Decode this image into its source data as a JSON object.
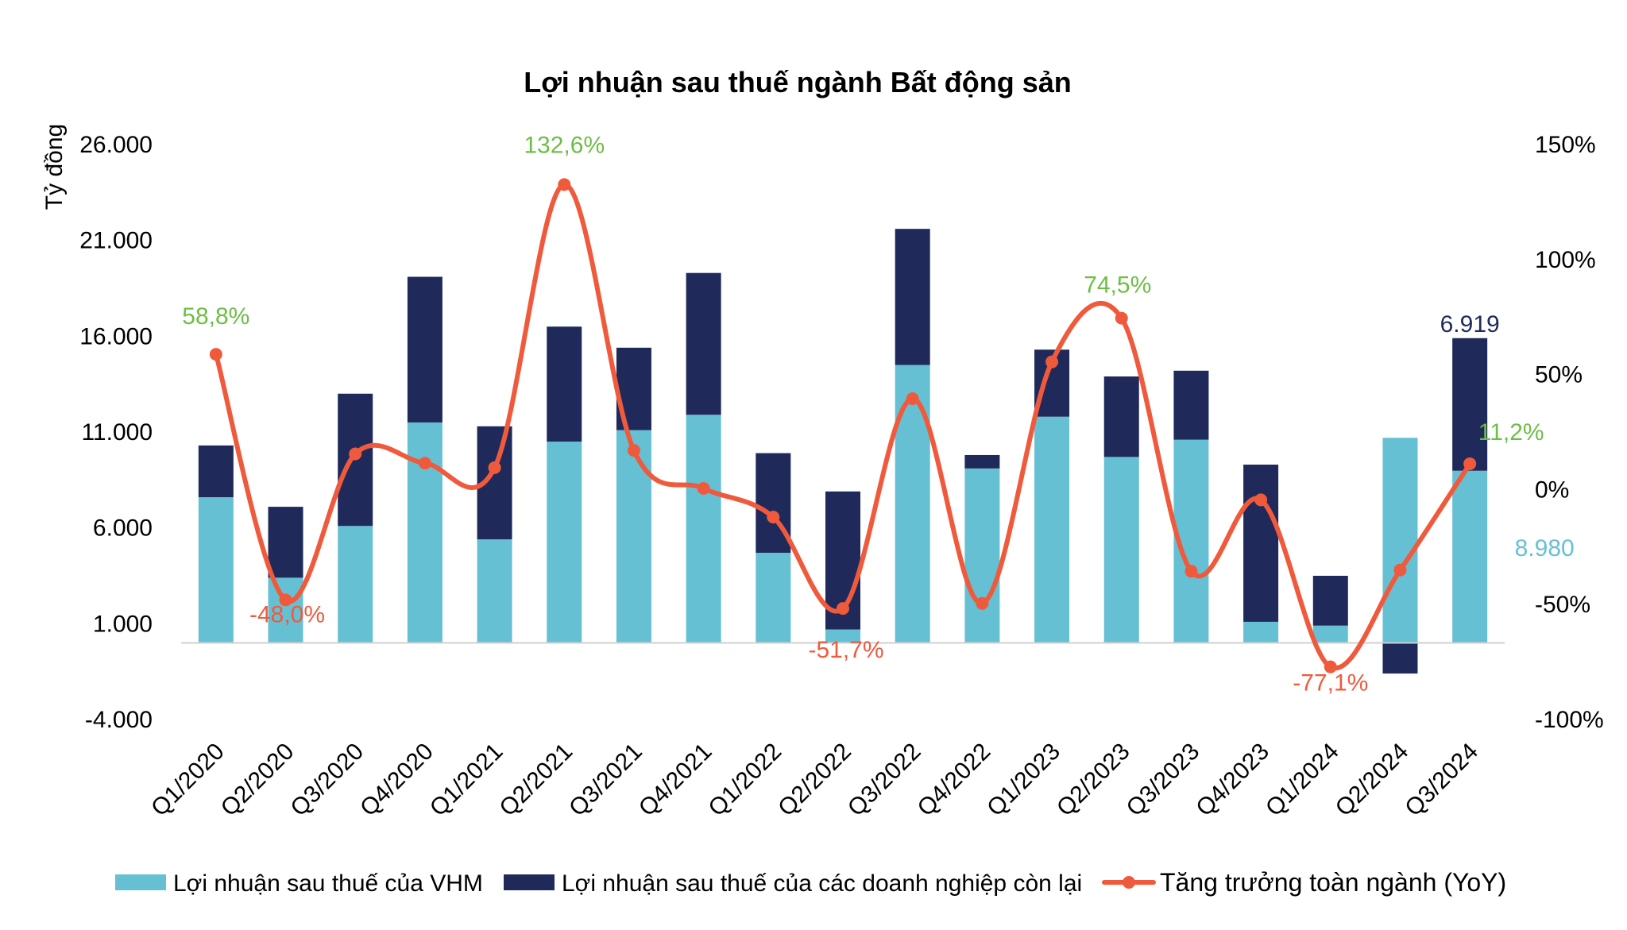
{
  "chart_data": {
    "type": "bar+line",
    "title": "Lợi nhuận sau thuế ngành Bất động sản",
    "ylabel": "Tỷ đồng",
    "ylim": [
      -4000,
      26000
    ],
    "y_ticks": [
      "26.000",
      "21.000",
      "16.000",
      "11.000",
      "6.000",
      "1.000",
      "-4.000"
    ],
    "y_tick_values": [
      26000,
      21000,
      16000,
      11000,
      6000,
      1000,
      -4000
    ],
    "y2lim": [
      -100,
      150
    ],
    "y2_ticks": [
      "150%",
      "100%",
      "50%",
      "0%",
      "-50%",
      "-100%"
    ],
    "y2_tick_values": [
      150,
      100,
      50,
      0,
      -50,
      -100
    ],
    "categories": [
      "Q1/2020",
      "Q2/2020",
      "Q3/2020",
      "Q4/2020",
      "Q1/2021",
      "Q2/2021",
      "Q3/2021",
      "Q4/2021",
      "Q1/2022",
      "Q2/2022",
      "Q3/2022",
      "Q4/2022",
      "Q1/2023",
      "Q2/2023",
      "Q3/2023",
      "Q4/2023",
      "Q1/2024",
      "Q2/2024",
      "Q3/2024"
    ],
    "series": [
      {
        "name": "Lợi nhuận sau thuế của VHM",
        "kind": "bar",
        "color": "#66C0D4",
        "values": [
          7600,
          3400,
          6100,
          11500,
          5400,
          10500,
          11100,
          11900,
          4700,
          700,
          14500,
          9100,
          11800,
          9700,
          10600,
          1100,
          900,
          10700,
          8980
        ]
      },
      {
        "name": "Lợi nhuận sau thuế của các doanh nghiệp còn lại",
        "kind": "bar",
        "color": "#1F2A5A",
        "values": [
          2700,
          3700,
          6900,
          7600,
          5900,
          6000,
          4300,
          7400,
          5200,
          7200,
          7100,
          700,
          3500,
          4200,
          3600,
          8200,
          2600,
          -1600,
          6919
        ]
      },
      {
        "name": "Tăng trưởng toàn ngành (YoY)",
        "kind": "line",
        "color": "#F05A3C",
        "values": [
          58.8,
          -48.0,
          15.5,
          11.5,
          9.5,
          132.6,
          17.0,
          0.5,
          -12.0,
          -51.7,
          39.5,
          -49.5,
          55.5,
          74.5,
          -35.5,
          -4.5,
          -77.1,
          -35.0,
          11.2
        ]
      }
    ],
    "line_labels": [
      {
        "index": 0,
        "text": "58,8%"
      },
      {
        "index": 1,
        "text": "-48,0%"
      },
      {
        "index": 5,
        "text": "132,6%"
      },
      {
        "index": 9,
        "text": "-51,7%"
      },
      {
        "index": 13,
        "text": "74,5%"
      },
      {
        "index": 16,
        "text": "-77,1%"
      },
      {
        "index": 18,
        "text": "11,2%"
      }
    ],
    "bar_labels": [
      {
        "index": 18,
        "series": 1,
        "text": "6.919"
      },
      {
        "index": 18,
        "series": 0,
        "text": "8.980"
      }
    ],
    "colors": {
      "label_green": "#6DBE45",
      "label_red": "#F05A3C",
      "label_navy": "#1F2A5A",
      "label_teal": "#66C0D4"
    },
    "legend": {
      "position": "bottom",
      "items": [
        {
          "label": "Lợi nhuận sau thuế của VHM",
          "color": "#66C0D4",
          "kind": "bar"
        },
        {
          "label": "Lợi nhuận sau thuế của các doanh nghiệp còn lại",
          "color": "#1F2A5A",
          "kind": "bar"
        },
        {
          "label": "Tăng trưởng toàn ngành (YoY)",
          "color": "#F05A3C",
          "kind": "line"
        }
      ]
    }
  }
}
